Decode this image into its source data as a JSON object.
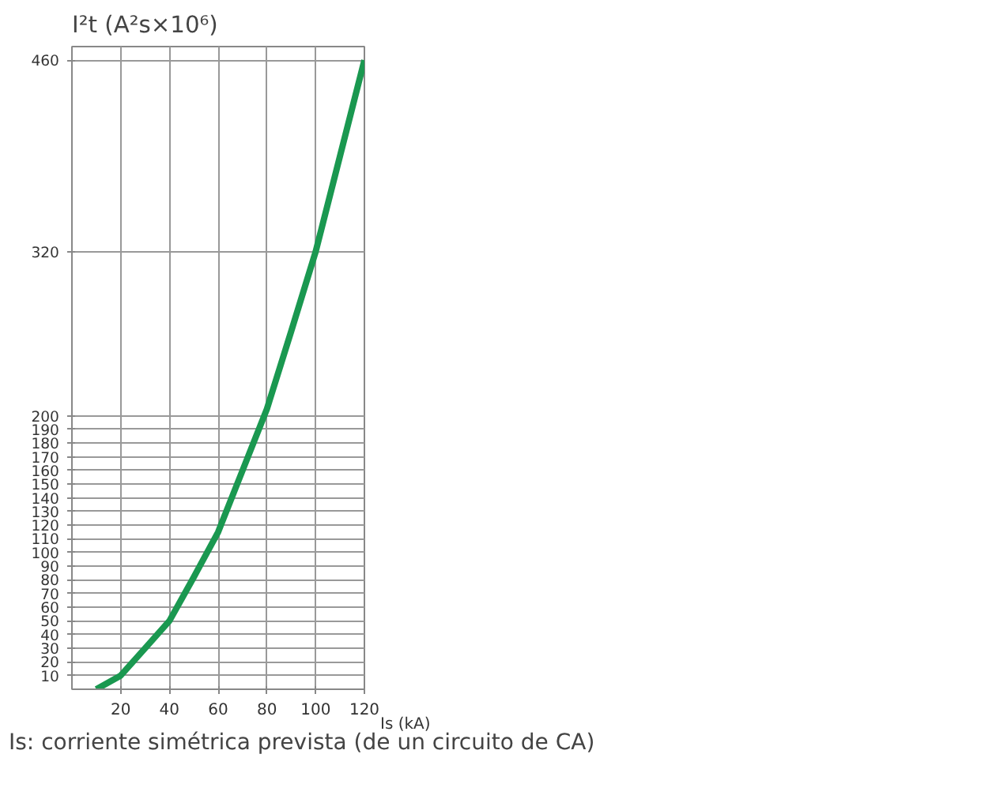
{
  "chart_data": {
    "type": "line",
    "ylabel": "I²t  (A²s×10⁶)",
    "xlabel": "Is  (kA)",
    "annotations": [
      "Is: corriente simétrica prevista (de un circuito de CA)"
    ],
    "x": [
      10,
      20,
      30,
      40,
      50,
      60,
      70,
      80,
      90,
      100,
      110,
      120
    ],
    "series": [
      {
        "color": "#1a9850",
        "values": [
          0,
          10,
          30,
          50,
          82,
          115,
          160,
          205,
          262,
          320,
          390,
          460
        ]
      }
    ],
    "xlim": [
      0,
      120
    ],
    "ylim": [
      0,
      470
    ],
    "xticks": [
      20,
      40,
      60,
      80,
      100,
      120
    ],
    "yticks": [
      10,
      20,
      30,
      40,
      50,
      60,
      70,
      80,
      90,
      100,
      110,
      120,
      130,
      140,
      150,
      160,
      170,
      180,
      190,
      200,
      320,
      460
    ],
    "grid": true,
    "marker": "none",
    "line_style": "solid"
  }
}
